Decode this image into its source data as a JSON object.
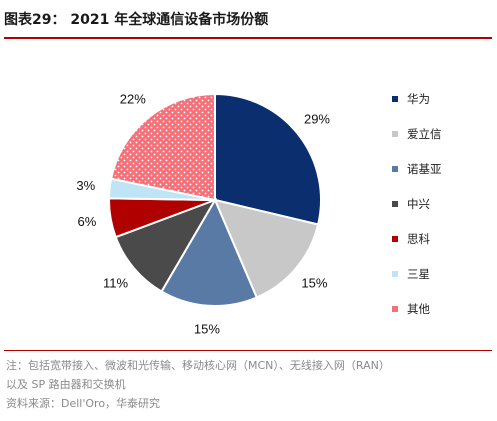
{
  "title": "图表29：  2021 年全球通信设备市场份额",
  "chart_data": {
    "type": "pie",
    "title": "2021 年全球通信设备市场份额",
    "categories": [
      "华为",
      "爱立信",
      "诺基亚",
      "中兴",
      "思科",
      "三星",
      "其他"
    ],
    "values": [
      29,
      15,
      15,
      11,
      6,
      3,
      22
    ],
    "labels": [
      "29%",
      "15%",
      "15%",
      "11%",
      "6%",
      "3%",
      "22%"
    ],
    "colors": [
      "#0b2e6f",
      "#c8c8c8",
      "#5a7aa6",
      "#4a4a4a",
      "#b00000",
      "#bfe4f6",
      "#f4717a"
    ],
    "hatched": [
      false,
      false,
      false,
      false,
      false,
      false,
      true
    ],
    "start_angle_deg": 0,
    "direction": "clockwise",
    "legend_position": "right"
  },
  "note_line1": "注：包括宽带接入、微波和光传输、移动核心网（MCN）、无线接入网（RAN）",
  "note_line2": "以及 SP 路由器和交换机",
  "source": "资料来源：Dell'Oro，华泰研究"
}
